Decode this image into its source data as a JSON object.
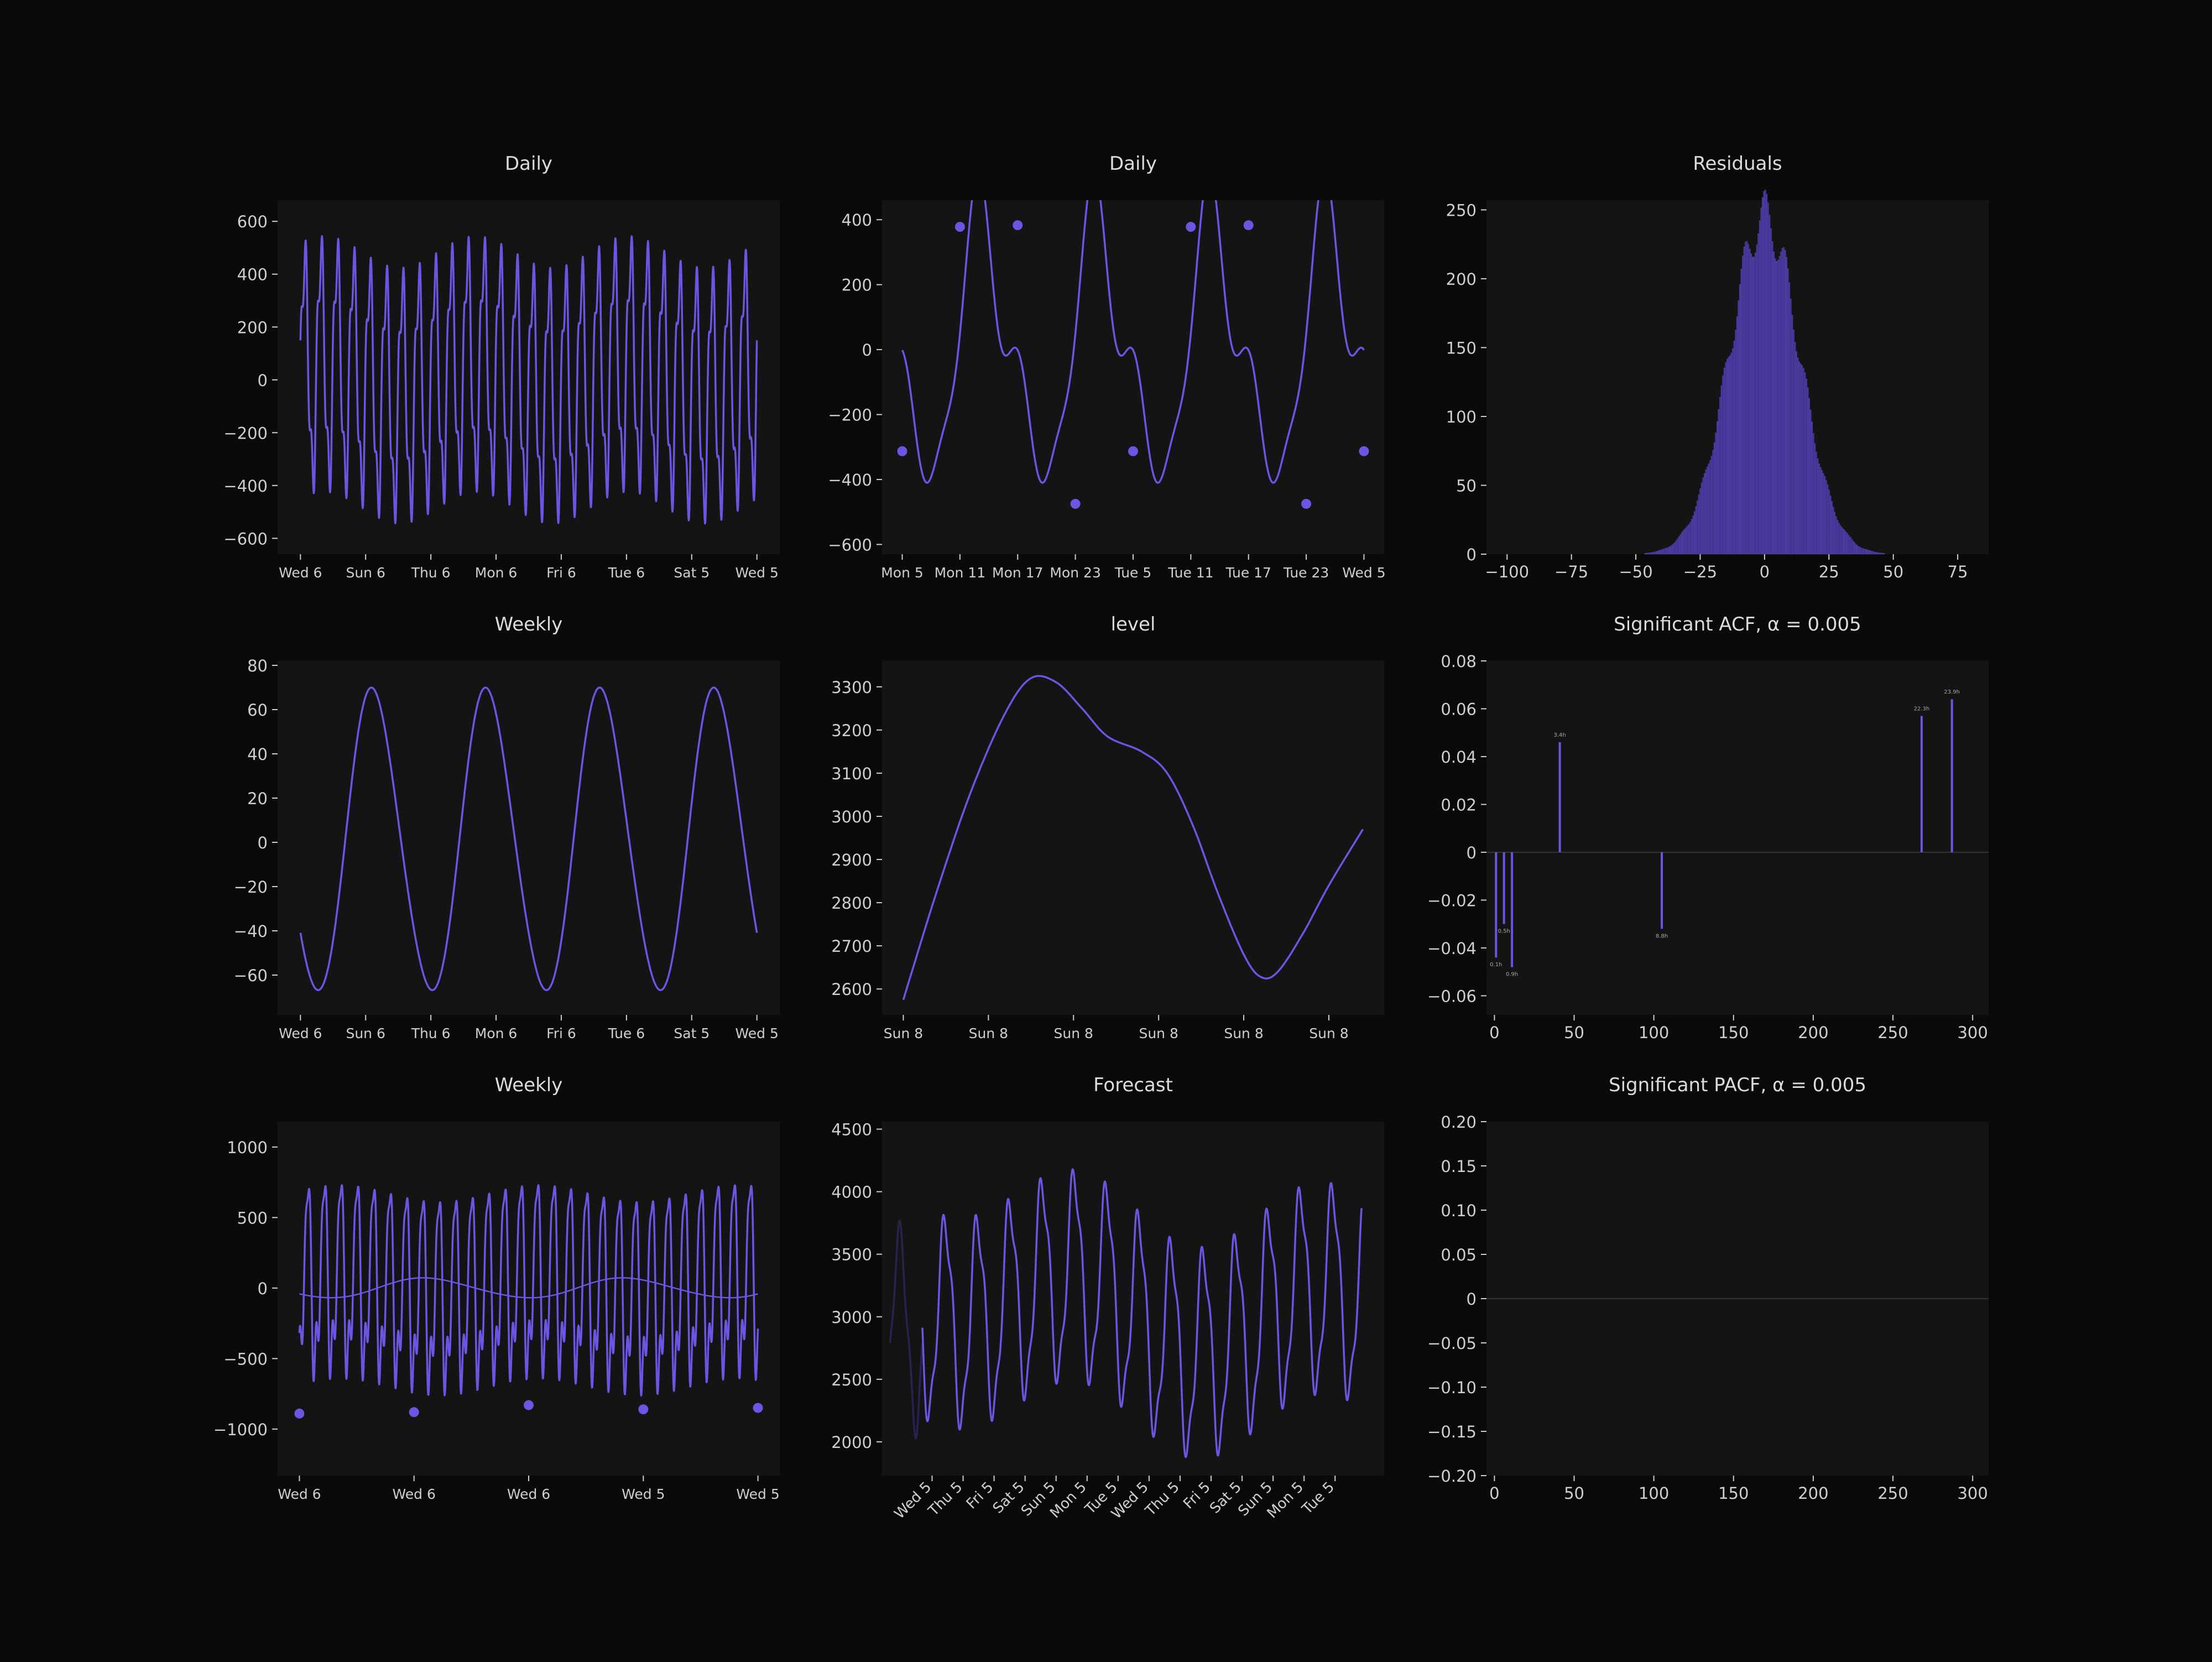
{
  "figure": {
    "background": "#0a0a0a",
    "panel_bg": "#141414",
    "line_color": "#6b56e4",
    "dim_line_color": "#2a2250",
    "text_color": "#dcdcdc",
    "tick_color": "#cfcfcf"
  },
  "chart_data": [
    {
      "id": "daily-1",
      "type": "line",
      "title": "Daily",
      "xticks": [
        "Wed 6",
        "Sun 6",
        "Thu 6",
        "Mon 6",
        "Fri 6",
        "Tue 6",
        "Sat 5",
        "Wed 5"
      ],
      "yticks": [
        600,
        400,
        200,
        0,
        -200,
        -400,
        -600
      ],
      "ylim": [
        -660,
        680
      ],
      "xlim": [
        -0.35,
        7.35
      ],
      "series": [
        {
          "x_range": [
            0,
            7
          ],
          "samples": 1400,
          "components": [
            [
              0,
              420,
              28,
              0
            ],
            [
              0,
              120,
              84,
              1.3
            ],
            [
              0,
              60,
              3,
              0.6
            ]
          ]
        }
      ]
    },
    {
      "id": "daily-2",
      "type": "line",
      "title": "Daily",
      "xticks": [
        "Mon 5",
        "Mon 11",
        "Mon 17",
        "Mon 23",
        "Tue 5",
        "Tue 11",
        "Tue 17",
        "Tue 23",
        "Wed 5"
      ],
      "yticks": [
        400,
        200,
        0,
        -200,
        -400,
        -600
      ],
      "ylim": [
        -630,
        460
      ],
      "xlim": [
        -0.35,
        8.35
      ],
      "series": [
        {
          "x_range": [
            0,
            8
          ],
          "samples": 800,
          "components": [
            [
              0,
              380,
              0.5,
              3.45
            ],
            [
              0,
              120,
              1.0,
              0.2
            ],
            [
              0,
              90,
              1.5,
              1.5
            ]
          ]
        }
      ],
      "markers": [
        [
          0,
          -313
        ],
        [
          1,
          378
        ],
        [
          2,
          383
        ],
        [
          3,
          -475
        ],
        [
          4,
          -313
        ],
        [
          5,
          378
        ],
        [
          6,
          383
        ],
        [
          7,
          -475
        ],
        [
          8,
          -313
        ]
      ]
    },
    {
      "id": "residuals",
      "type": "bar",
      "title": "Residuals",
      "xticks": [
        -100,
        -75,
        -50,
        -25,
        0,
        25,
        50,
        75
      ],
      "yticks": [
        0,
        50,
        100,
        150,
        200,
        250
      ],
      "xlim": [
        -108,
        87
      ],
      "ylim": [
        0,
        257
      ],
      "bins": {
        "start": -100,
        "end": 80,
        "width": 0.55,
        "peak": 245,
        "center": 0,
        "sigma": 13.5
      }
    },
    {
      "id": "weekly-1",
      "type": "line",
      "title": "Weekly",
      "xticks": [
        "Wed 6",
        "Sun 6",
        "Thu 6",
        "Mon 6",
        "Fri 6",
        "Tue 6",
        "Sat 5",
        "Wed 5"
      ],
      "yticks": [
        80,
        60,
        40,
        20,
        0,
        -20,
        -40,
        -60
      ],
      "ylim": [
        -78,
        82
      ],
      "xlim": [
        -0.35,
        7.35
      ],
      "series": [
        {
          "x_range": [
            0,
            7
          ],
          "samples": 700,
          "components": [
            [
              0,
              68,
              4,
              3.85
            ],
            [
              0,
              4,
              8,
              1.0
            ]
          ]
        }
      ]
    },
    {
      "id": "level",
      "type": "line",
      "title": "level",
      "xticks": [
        "Sun 8",
        "Sun 8",
        "Sun 8",
        "Sun 8",
        "Sun 8",
        "Sun 8"
      ],
      "yticks": [
        3300,
        3200,
        3100,
        3000,
        2900,
        2800,
        2700,
        2600
      ],
      "ylim": [
        2540,
        3360
      ],
      "xlim": [
        -0.25,
        5.65
      ],
      "series": [
        {
          "points": [
            [
              0,
              2575
            ],
            [
              0.4,
              2830
            ],
            [
              0.8,
              3060
            ],
            [
              1.2,
              3240
            ],
            [
              1.5,
              3320
            ],
            [
              1.8,
              3310
            ],
            [
              2.1,
              3250
            ],
            [
              2.4,
              3185
            ],
            [
              2.8,
              3150
            ],
            [
              3.1,
              3100
            ],
            [
              3.4,
              2980
            ],
            [
              3.7,
              2820
            ],
            [
              4.0,
              2680
            ],
            [
              4.2,
              2628
            ],
            [
              4.4,
              2640
            ],
            [
              4.7,
              2730
            ],
            [
              5.0,
              2840
            ],
            [
              5.4,
              2970
            ]
          ]
        }
      ]
    },
    {
      "id": "acf",
      "type": "bar",
      "title": "Significant ACF, α = 0.005",
      "xticks": [
        0,
        50,
        100,
        150,
        200,
        250,
        300
      ],
      "yticks": [
        0.08,
        0.06,
        0.04,
        0.02,
        0.0,
        -0.02,
        -0.04,
        -0.06
      ],
      "xlim": [
        -5,
        310
      ],
      "ylim": [
        -0.068,
        0.08
      ],
      "bars": [
        {
          "x": 1,
          "value": -0.044,
          "label": "0.1h"
        },
        {
          "x": 6,
          "value": -0.03,
          "label": "0.5h"
        },
        {
          "x": 11,
          "value": -0.048,
          "label": "0.9h"
        },
        {
          "x": 41,
          "value": 0.046,
          "label": "3.4h"
        },
        {
          "x": 105,
          "value": -0.032,
          "label": "8.8h"
        },
        {
          "x": 268,
          "value": 0.057,
          "label": "22.3h"
        },
        {
          "x": 287,
          "value": 0.064,
          "label": "23.9h"
        }
      ]
    },
    {
      "id": "weekly-2",
      "type": "line",
      "title": "Weekly",
      "xticks": [
        "Wed 6",
        "Wed 6",
        "Wed 6",
        "Wed 5",
        "Wed 5"
      ],
      "yticks": [
        1000,
        500,
        0,
        -500,
        -1000
      ],
      "ylim": [
        -1330,
        1180
      ],
      "xlim": [
        -0.19,
        4.19
      ],
      "series": [
        {
          "x_range": [
            0,
            4
          ],
          "samples": 1500,
          "components": [
            [
              0,
              620,
              28,
              4.71
            ],
            [
              0,
              160,
              84,
              1.3
            ],
            [
              0,
              180,
              56,
              0.8
            ],
            [
              0,
              60,
              2.3,
              0.3
            ]
          ]
        },
        {
          "x_range": [
            0,
            4
          ],
          "samples": 400,
          "components": [
            [
              0,
              70,
              2.3,
              3.85
            ],
            [
              0,
              5,
              4.6,
              1.0
            ]
          ]
        }
      ],
      "markers": [
        [
          0,
          -890
        ],
        [
          1,
          -880
        ],
        [
          2,
          -830
        ],
        [
          3,
          -860
        ],
        [
          4,
          -850
        ]
      ]
    },
    {
      "id": "forecast",
      "type": "line",
      "title": "Forecast",
      "xticks": [
        "Wed 5",
        "Thu 5",
        "Fri 5",
        "Sat 5",
        "Sun 5",
        "Mon 5",
        "Tue 5",
        "Wed 5",
        "Thu 5",
        "Fri 5",
        "Sat 5",
        "Sun 5",
        "Mon 5",
        "Tue 5"
      ],
      "yticks": [
        4500,
        4000,
        3500,
        3000,
        2500,
        2000
      ],
      "ylim": [
        1730,
        4560
      ],
      "xlim": [
        -0.85,
        14.7
      ],
      "series": [
        {
          "x_range": [
            -0.6,
            0.4
          ],
          "samples": 150,
          "base": 2900,
          "components": [
            [
              2900,
              750,
              1,
              3.5
            ],
            [
              0,
              120,
              3,
              1.0
            ]
          ],
          "style": "dim"
        },
        {
          "x_range": [
            0.4,
            14.0
          ],
          "samples": 1600,
          "components": [
            [
              3050,
              780,
              1,
              0.9
            ],
            [
              0,
              140,
              3,
              1.2
            ],
            [
              0,
              220,
              0.14,
              3.2
            ],
            [
              0,
              130,
              0.07,
              0.4
            ]
          ]
        }
      ]
    },
    {
      "id": "pacf",
      "type": "bar",
      "title": "Significant PACF, α = 0.005",
      "xticks": [
        0,
        50,
        100,
        150,
        200,
        250,
        300
      ],
      "yticks": [
        0.2,
        0.15,
        0.1,
        0.05,
        0.0,
        -0.05,
        -0.1,
        -0.15,
        -0.2
      ],
      "xlim": [
        -5,
        310
      ],
      "ylim": [
        -0.2,
        0.2
      ],
      "bars": []
    }
  ]
}
